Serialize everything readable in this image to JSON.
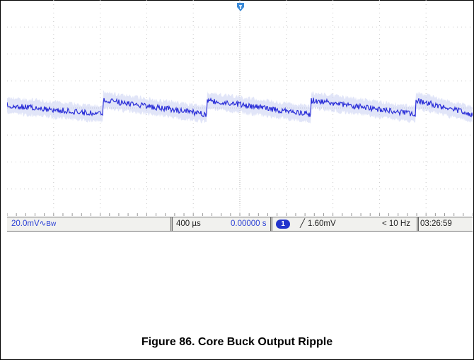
{
  "scope": {
    "colors": {
      "trace": "#2b2fd8",
      "trace_persist": "#cdd3f3",
      "grid": "#c8c8c8",
      "trigger_marker": "#3a8ad8"
    },
    "trigger_icon": "trigger-position-arrow-icon",
    "status": {
      "vertical_scale": "20.0mV",
      "coupling_symbol": "∿",
      "bandwidth_limit": "Bw",
      "timebase": "400 µs",
      "trigger_position": "0.00000 s",
      "channel_badge": "1",
      "trigger_slope_symbol": "╱",
      "trigger_level": "1.60mV",
      "frequency_readout": "< 10 Hz",
      "clock": "03:26:59"
    }
  },
  "caption": "Figure 86. Core Buck Output Ripple"
}
